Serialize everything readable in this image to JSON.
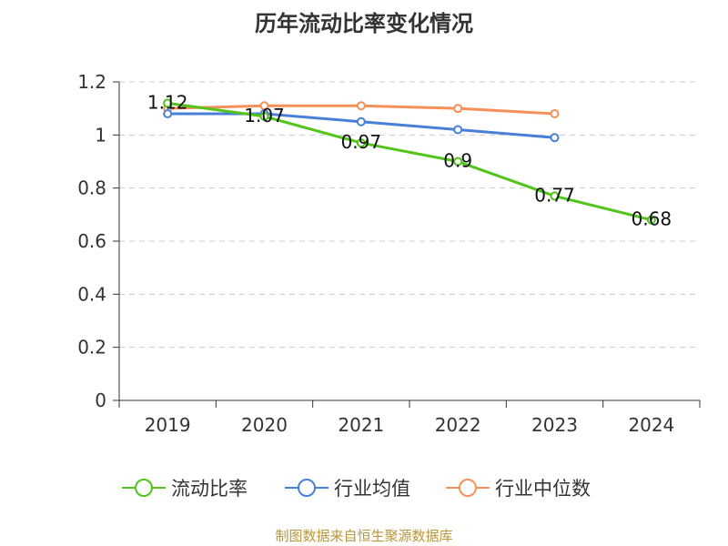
{
  "chart_data": {
    "type": "line",
    "title": "历年流动比率变化情况",
    "categories": [
      "2019",
      "2020",
      "2021",
      "2022",
      "2023",
      "2024"
    ],
    "ylim": [
      0,
      1.2
    ],
    "yticks": [
      0,
      0.2,
      0.4,
      0.6,
      0.8,
      1,
      1.2
    ],
    "ytick_labels": [
      "0",
      "0.2",
      "0.4",
      "0.6",
      "0.8",
      "1",
      "1.2"
    ],
    "grid": true,
    "legend_position": "bottom",
    "series": [
      {
        "name": "流动比率",
        "color": "#52c41a",
        "values": [
          1.12,
          1.07,
          0.97,
          0.9,
          0.77,
          0.68
        ],
        "data_labels": [
          "1.12",
          "1.07",
          "0.97",
          "0.9",
          "0.77",
          "0.68"
        ]
      },
      {
        "name": "行业均值",
        "color": "#4a7fd9",
        "values": [
          1.08,
          1.08,
          1.05,
          1.02,
          0.99,
          null
        ],
        "data_labels": []
      },
      {
        "name": "行业中位数",
        "color": "#f59058",
        "values": [
          1.1,
          1.11,
          1.11,
          1.1,
          1.08,
          null
        ],
        "data_labels": []
      }
    ]
  },
  "source": "制图数据来自恒生聚源数据库"
}
